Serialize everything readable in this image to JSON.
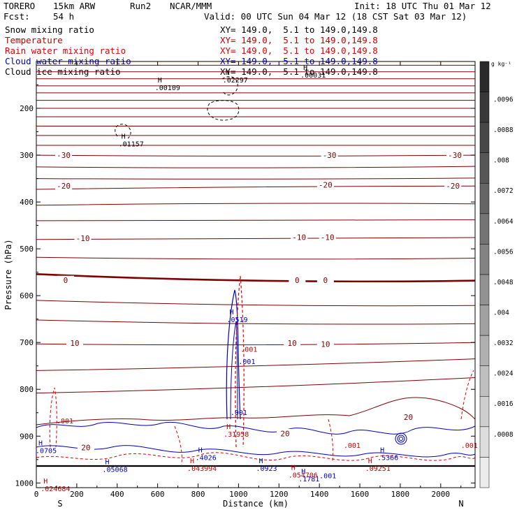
{
  "header": {
    "model": "TORERO",
    "resolution": "15km ARW",
    "run": "Run2",
    "center": "NCAR/MMM",
    "init": "Init: 18 UTC Thu 01 Mar 12",
    "fcst_label": "Fcst:",
    "fcst_value": "54 h",
    "valid": "Valid: 00 UTC Sun 04 Mar 12 (18 CST Sat 03 Mar 12)"
  },
  "fields": [
    {
      "name": "Snow mixing ratio",
      "xy": "XY= 149.0,  5.1 to 149.0,149.8",
      "color": "#000000"
    },
    {
      "name": "Temperature",
      "xy": "XY= 149.0,  5.1 to 149.0,149.8",
      "color": "#c00000"
    },
    {
      "name": "Rain water mixing ratio",
      "xy": "XY= 149.0,  5.1 to 149.0,149.8",
      "color": "#e00000"
    },
    {
      "name": "Cloud water mixing ratio",
      "xy": "XY= 149.0,  5.1 to 149.0,149.8",
      "color": "#0000c0"
    },
    {
      "name": "Cloud ice mixing ratio",
      "xy": "XY= 149.0,  5.1 to 149.0,149.8",
      "color": "#000000"
    }
  ],
  "chart_data": {
    "type": "contour",
    "xlabel": "Distance (km)",
    "ylabel": "Pressure (hPa)",
    "xlim": [
      0,
      2170
    ],
    "ylim": [
      1010,
      100
    ],
    "x_ticks": [
      0,
      200,
      400,
      600,
      800,
      1000,
      1200,
      1400,
      1600,
      1800,
      2000
    ],
    "y_ticks": [
      200,
      300,
      400,
      500,
      600,
      700,
      800,
      900,
      1000
    ],
    "x_end_labels": {
      "left": "S",
      "right": "N"
    },
    "colorbar": {
      "unit": "g kg⁻¹",
      "labels": [
        ".0096",
        ".0088",
        ".008",
        ".0072",
        ".0064",
        ".0056",
        ".0048",
        ".004",
        ".0032",
        ".0024",
        ".0016",
        ".0008"
      ],
      "colors": [
        "#2a2a2a",
        "#383838",
        "#474747",
        "#565656",
        "#656565",
        "#747474",
        "#838383",
        "#929292",
        "#a1a1a1",
        "#b0b0b0",
        "#bfbfbf",
        "#cecece",
        "#dddddd",
        "#ececec"
      ]
    },
    "temperature_contours": [
      {
        "p": [
          108,
          108,
          108
        ],
        "label": ""
      },
      {
        "p": [
          122,
          122,
          122
        ],
        "label": ""
      },
      {
        "p": [
          137,
          137,
          137
        ],
        "label": ""
      },
      {
        "p": [
          152,
          152,
          152
        ],
        "label": ""
      },
      {
        "p": [
          167,
          167,
          167
        ],
        "label": ""
      },
      {
        "p": [
          183,
          183,
          183
        ],
        "label": ""
      },
      {
        "p": [
          200,
          200,
          200
        ],
        "label": ""
      },
      {
        "p": [
          218,
          218,
          218
        ],
        "label": ""
      },
      {
        "p": [
          238,
          238,
          238
        ],
        "label": ""
      },
      {
        "p": [
          258,
          258,
          258
        ],
        "label": ""
      },
      {
        "p": [
          279,
          279,
          279
        ],
        "label": ""
      },
      {
        "p": [
          300,
          302,
          300
        ],
        "label": "-30"
      },
      {
        "p": [
          325,
          327,
          324
        ],
        "label": ""
      },
      {
        "p": [
          350,
          351,
          349
        ],
        "label": ""
      },
      {
        "p": [
          373,
          368,
          366
        ],
        "label": "-20"
      },
      {
        "p": [
          407,
          403,
          404
        ],
        "label": ""
      },
      {
        "p": [
          440,
          439,
          438
        ],
        "label": ""
      },
      {
        "p": [
          480,
          478,
          476
        ],
        "label": "-10"
      },
      {
        "p": [
          518,
          522,
          520
        ],
        "label": ""
      },
      {
        "p": [
          554,
          568,
          568
        ],
        "label": "0"
      },
      {
        "p": [
          610,
          620,
          621
        ],
        "label": ""
      },
      {
        "p": [
          652,
          660,
          660
        ],
        "label": ""
      },
      {
        "p": [
          703,
          705,
          700
        ],
        "label": "10"
      },
      {
        "p": [
          760,
          750,
          735
        ],
        "label": ""
      },
      {
        "p": [
          808,
          795,
          775
        ],
        "label": ""
      }
    ],
    "contour_labels": [
      {
        "x": 135,
        "p": 301,
        "text": "-30"
      },
      {
        "x": 1450,
        "p": 301,
        "text": "-30"
      },
      {
        "x": 2070,
        "p": 301,
        "text": "-30"
      },
      {
        "x": 135,
        "p": 366,
        "text": "-20"
      },
      {
        "x": 1430,
        "p": 364,
        "text": "-20"
      },
      {
        "x": 2060,
        "p": 366,
        "text": "-20"
      },
      {
        "x": 230,
        "p": 478,
        "text": "-10"
      },
      {
        "x": 1300,
        "p": 476,
        "text": "-10"
      },
      {
        "x": 1440,
        "p": 476,
        "text": "-10"
      },
      {
        "x": 145,
        "p": 568,
        "text": "0"
      },
      {
        "x": 1290,
        "p": 568,
        "text": "0"
      },
      {
        "x": 1430,
        "p": 568,
        "text": "0"
      },
      {
        "x": 190,
        "p": 702,
        "text": "10"
      },
      {
        "x": 1265,
        "p": 702,
        "text": "10"
      },
      {
        "x": 1430,
        "p": 704,
        "text": "10"
      },
      {
        "x": 1840,
        "p": 860,
        "text": "20"
      },
      {
        "x": 1230,
        "p": 895,
        "text": "20"
      },
      {
        "x": 245,
        "p": 925,
        "text": "20"
      }
    ],
    "h_labels": [
      {
        "x": 1310,
        "p": 118,
        "value": ".00031",
        "color": "#000000"
      },
      {
        "x": 925,
        "p": 128,
        "value": ".02297",
        "color": "#000000"
      },
      {
        "x": 590,
        "p": 145,
        "value": ".00109",
        "color": "#000000"
      },
      {
        "x": 410,
        "p": 265,
        "value": ".01157",
        "color": "#000000"
      },
      {
        "x": 945,
        "p": 640,
        "value": ".0519",
        "color": "#0000c0"
      },
      {
        "x": 0,
        "p": 920,
        "value": ".0705",
        "color": "#0000c0"
      },
      {
        "x": 330,
        "p": 960,
        "value": ".05068",
        "color": "#0000c0"
      },
      {
        "x": 790,
        "p": 935,
        "value": ".4026",
        "color": "#0000c0"
      },
      {
        "x": 1090,
        "p": 958,
        "value": ".0923",
        "color": "#0000c0"
      },
      {
        "x": 1300,
        "p": 980,
        "value": ".1781",
        "color": "#0000c0"
      },
      {
        "x": 1690,
        "p": 935,
        "value": ".5366",
        "color": "#0000c0"
      },
      {
        "x": 750,
        "p": 958,
        "value": ".043994",
        "color": "#c00000"
      },
      {
        "x": 930,
        "p": 885,
        "value": ".31958",
        "color": "#c00000"
      },
      {
        "x": 1250,
        "p": 972,
        "value": ".054706",
        "color": "#c00000"
      },
      {
        "x": 1630,
        "p": 958,
        "value": ".09251",
        "color": "#c00000"
      },
      {
        "x": 25,
        "p": 1001,
        "value": ".024684",
        "color": "#c00000"
      }
    ],
    "value_labels": [
      {
        "x": 1000,
        "p": 746,
        "value": ".001",
        "color": "#0000c0"
      },
      {
        "x": 960,
        "p": 855,
        "value": ".001",
        "color": "#0000c0"
      },
      {
        "x": 1400,
        "p": 990,
        "value": ".001",
        "color": "#0000c0"
      },
      {
        "x": 1010,
        "p": 720,
        "value": ".001",
        "color": "#c00000"
      },
      {
        "x": 100,
        "p": 873,
        "value": ".001",
        "color": "#c00000"
      },
      {
        "x": 1520,
        "p": 925,
        "value": ".001",
        "color": "#c00000"
      },
      {
        "x": 2100,
        "p": 925,
        "value": ".001",
        "color": "#c00000"
      }
    ]
  }
}
